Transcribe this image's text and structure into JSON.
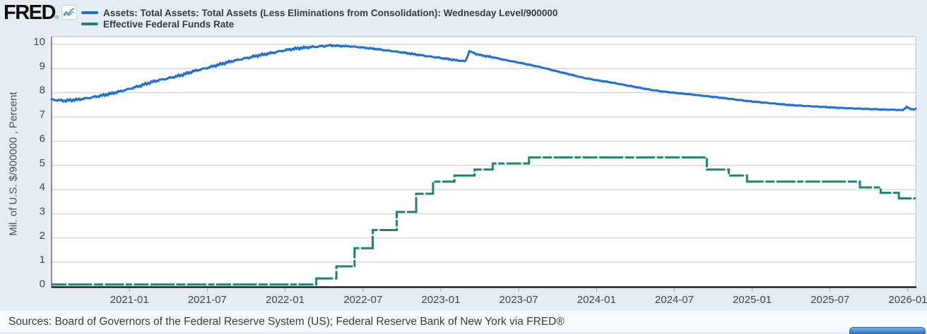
{
  "header": {
    "logo": "FRED",
    "registered_mark": "®",
    "legend": [
      {
        "label": "Assets: Total Assets: Total Assets (Less Eliminations from Consolidation): Wednesday Level/900000",
        "color": "#1f6fd0"
      },
      {
        "label": "Effective Federal Funds Rate",
        "color": "#1e8274"
      }
    ]
  },
  "footer": {
    "sources": "Sources: Board of Governors of the Federal Reserve System (US); Federal Reserve Bank of New York via FRED®"
  },
  "chart_data": {
    "type": "line",
    "title": "",
    "xlabel": "",
    "ylabel": "Mil. of U.S. $/900000 , Percent",
    "ylim": [
      0,
      10
    ],
    "y_ticks": [
      0,
      1,
      2,
      3,
      4,
      5,
      6,
      7,
      8,
      9,
      10
    ],
    "x_range_months": [
      0,
      66.6
    ],
    "x_start": "2020-07",
    "x_end": "2026-01",
    "grid": true,
    "legend_position": "top-left",
    "x_ticks": [
      {
        "label": "2021-01",
        "m": 6
      },
      {
        "label": "2021-07",
        "m": 12
      },
      {
        "label": "2022-01",
        "m": 18
      },
      {
        "label": "2022-07",
        "m": 24
      },
      {
        "label": "2023-01",
        "m": 30
      },
      {
        "label": "2023-07",
        "m": 36
      },
      {
        "label": "2024-01",
        "m": 42
      },
      {
        "label": "2024-07",
        "m": 48
      },
      {
        "label": "2025-01",
        "m": 54
      },
      {
        "label": "2025-07",
        "m": 60
      },
      {
        "label": "2026-01",
        "m": 66
      }
    ],
    "series": [
      {
        "name": "Assets: Total Assets: Total Assets (Less Eliminations from Consolidation): Wednesday Level/900000",
        "type": "line",
        "style": "solid-wiggly",
        "color": "#1f6fd0",
        "points": [
          [
            0,
            7.72
          ],
          [
            1,
            7.67
          ],
          [
            2,
            7.72
          ],
          [
            3,
            7.8
          ],
          [
            4,
            7.9
          ],
          [
            5,
            8.02
          ],
          [
            6,
            8.16
          ],
          [
            7,
            8.32
          ],
          [
            8,
            8.49
          ],
          [
            9,
            8.6
          ],
          [
            10,
            8.73
          ],
          [
            11,
            8.9
          ],
          [
            12,
            9.03
          ],
          [
            13,
            9.18
          ],
          [
            14,
            9.32
          ],
          [
            15,
            9.43
          ],
          [
            16,
            9.55
          ],
          [
            17,
            9.65
          ],
          [
            18,
            9.76
          ],
          [
            19,
            9.84
          ],
          [
            20,
            9.89
          ],
          [
            21,
            9.93
          ],
          [
            21.5,
            9.96
          ],
          [
            22,
            9.94
          ],
          [
            23,
            9.92
          ],
          [
            24,
            9.87
          ],
          [
            25,
            9.81
          ],
          [
            26,
            9.74
          ],
          [
            27,
            9.67
          ],
          [
            28,
            9.59
          ],
          [
            29,
            9.51
          ],
          [
            30,
            9.44
          ],
          [
            31,
            9.36
          ],
          [
            31.9,
            9.3
          ],
          [
            32.2,
            9.72
          ],
          [
            32.6,
            9.63
          ],
          [
            33,
            9.56
          ],
          [
            34,
            9.47
          ],
          [
            35,
            9.35
          ],
          [
            36,
            9.25
          ],
          [
            37,
            9.14
          ],
          [
            38,
            9.02
          ],
          [
            39,
            8.88
          ],
          [
            40,
            8.75
          ],
          [
            41,
            8.62
          ],
          [
            42,
            8.52
          ],
          [
            43,
            8.44
          ],
          [
            44,
            8.34
          ],
          [
            45,
            8.24
          ],
          [
            46,
            8.14
          ],
          [
            47,
            8.06
          ],
          [
            48,
            8.0
          ],
          [
            49,
            7.95
          ],
          [
            50,
            7.89
          ],
          [
            51,
            7.83
          ],
          [
            52,
            7.77
          ],
          [
            53,
            7.7
          ],
          [
            54,
            7.64
          ],
          [
            55,
            7.59
          ],
          [
            56,
            7.54
          ],
          [
            57,
            7.49
          ],
          [
            58,
            7.46
          ],
          [
            59,
            7.43
          ],
          [
            60,
            7.4
          ],
          [
            61,
            7.37
          ],
          [
            62,
            7.35
          ],
          [
            63,
            7.33
          ],
          [
            64,
            7.31
          ],
          [
            65,
            7.3
          ],
          [
            65.6,
            7.28
          ],
          [
            65.9,
            7.42
          ],
          [
            66.2,
            7.32
          ],
          [
            66.6,
            7.33
          ]
        ]
      },
      {
        "name": "Effective Federal Funds Rate",
        "type": "step",
        "style": "dashed",
        "color": "#1e8274",
        "steps": [
          [
            0,
            20.4,
            0.08
          ],
          [
            20.4,
            21.95,
            0.33
          ],
          [
            21.95,
            23.35,
            0.83
          ],
          [
            23.35,
            24.75,
            1.58
          ],
          [
            24.75,
            26.6,
            2.33
          ],
          [
            26.6,
            28.1,
            3.08
          ],
          [
            28.1,
            29.4,
            3.83
          ],
          [
            29.4,
            31.05,
            4.33
          ],
          [
            31.05,
            32.6,
            4.58
          ],
          [
            32.6,
            34.0,
            4.83
          ],
          [
            34.0,
            36.8,
            5.08
          ],
          [
            36.8,
            50.5,
            5.33
          ],
          [
            50.5,
            52.2,
            4.83
          ],
          [
            52.2,
            53.6,
            4.58
          ],
          [
            53.6,
            62.3,
            4.33
          ],
          [
            62.3,
            63.9,
            4.09
          ],
          [
            63.9,
            65.3,
            3.87
          ],
          [
            65.3,
            66.6,
            3.64
          ]
        ]
      }
    ]
  },
  "colors": {
    "page_bg": "#e4ecf4",
    "plot_bg": "#ffffff",
    "gridline": "#c9c9c9",
    "axis_dark": "#1f1f1f",
    "border_light": "#b9c2cb",
    "tick_text": "#454545",
    "blue_line": "#1f6fd0",
    "green_line": "#1e8274"
  }
}
